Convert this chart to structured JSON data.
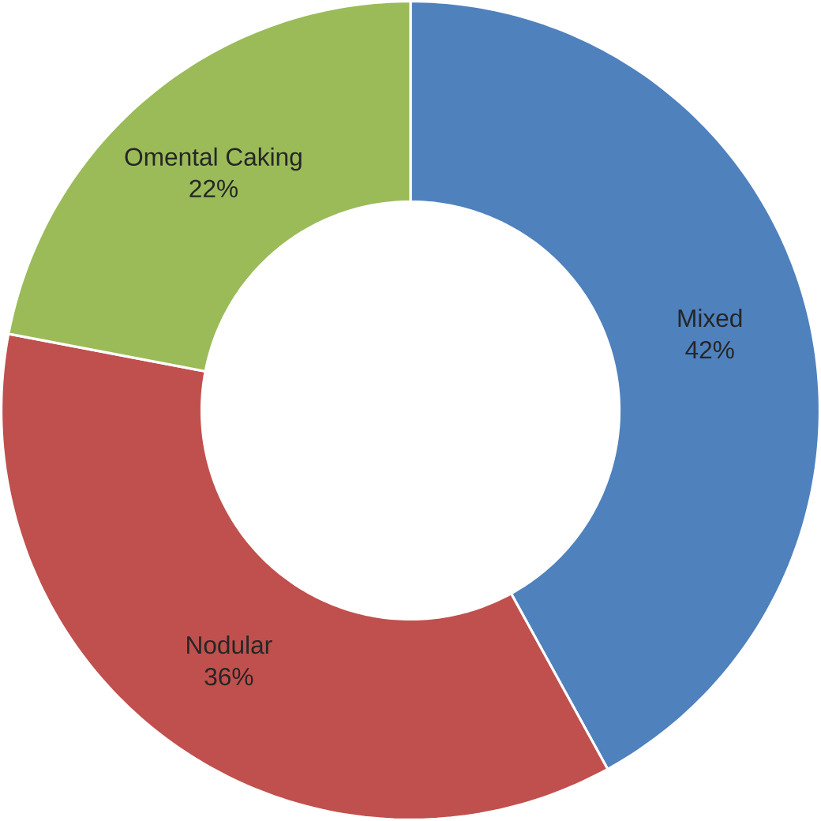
{
  "chart_data": {
    "type": "donut",
    "categories": [
      "Mixed",
      "Nodular",
      "Omental Caking"
    ],
    "values": [
      42,
      36,
      22
    ],
    "value_labels": [
      "42%",
      "36%",
      "22%"
    ],
    "colors": [
      "#4f81bd",
      "#c0504d",
      "#9bbb59"
    ]
  }
}
